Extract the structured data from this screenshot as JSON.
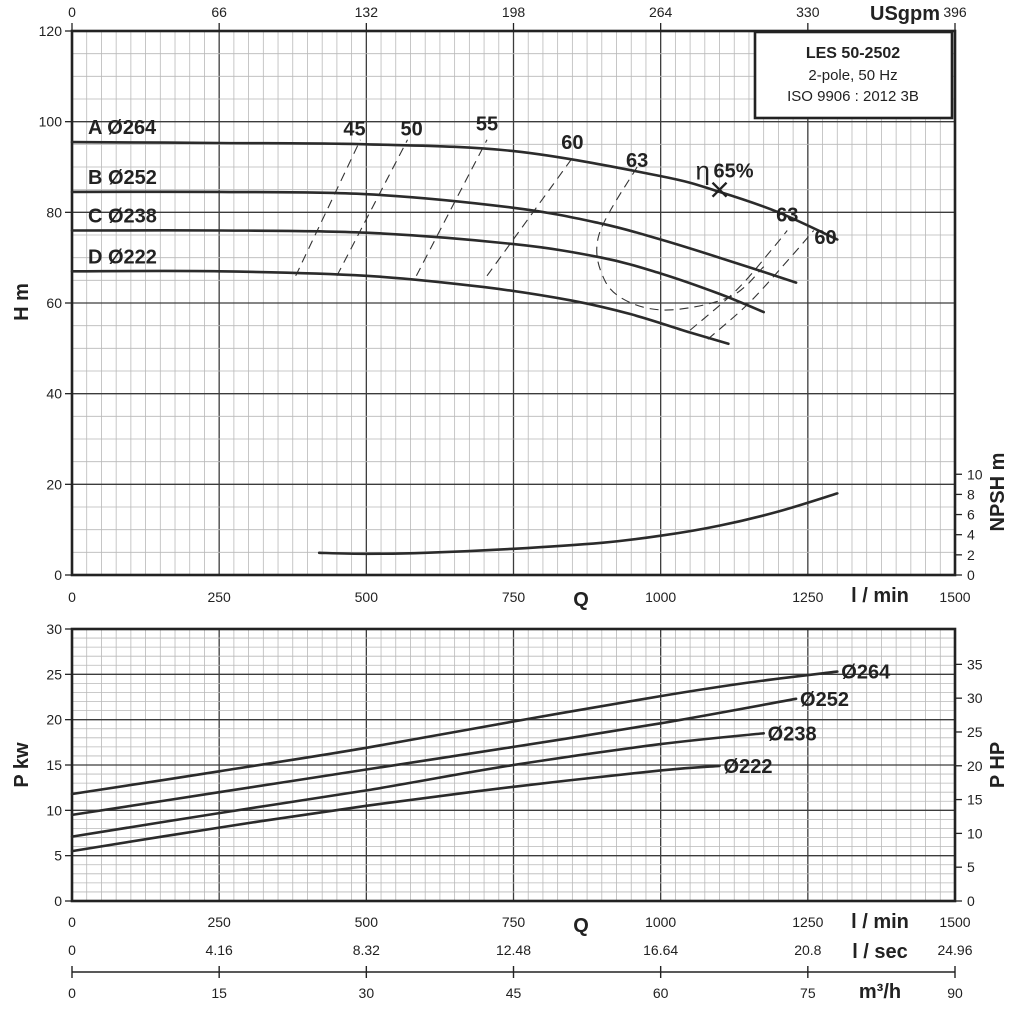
{
  "chart_data": [
    {
      "type": "line",
      "name": "head-chart",
      "model": "LES 50-2502",
      "model_details": [
        "2-pole, 50 Hz",
        "ISO 9906 : 2012 3B"
      ],
      "x_label": "Q",
      "x_unit": "l / min",
      "x_ticks": [
        0,
        250,
        500,
        750,
        1000,
        1250,
        1500
      ],
      "xlim": [
        0,
        1500
      ],
      "top_axis_unit": "USgpm",
      "top_axis_ticks": [
        "0",
        "66",
        "132",
        "198",
        "264",
        "330",
        "396"
      ],
      "y_label": "H m",
      "y_ticks": [
        0,
        20,
        40,
        60,
        80,
        100,
        120
      ],
      "ylim": [
        0,
        120
      ],
      "y2_label": "NPSH m",
      "y2_ticks": [
        0,
        2,
        4,
        6,
        8,
        10
      ],
      "grid": true,
      "series": [
        {
          "label": "A Ø264",
          "x": [
            0,
            250,
            500,
            750,
            1000,
            1100,
            1200,
            1300
          ],
          "y": [
            95.5,
            95.3,
            95,
            93.5,
            88,
            84.5,
            80,
            74
          ]
        },
        {
          "label": "B Ø252",
          "x": [
            0,
            250,
            500,
            750,
            900,
            1000,
            1100,
            1230
          ],
          "y": [
            84.5,
            84.5,
            84,
            81,
            77.5,
            74,
            70,
            64.5
          ]
        },
        {
          "label": "C Ø238",
          "x": [
            0,
            250,
            500,
            750,
            900,
            1000,
            1100,
            1175
          ],
          "y": [
            76,
            76,
            75.5,
            73,
            70,
            66.5,
            62,
            58
          ]
        },
        {
          "label": "D Ø222",
          "x": [
            0,
            250,
            500,
            700,
            850,
            950,
            1050,
            1115
          ],
          "y": [
            67,
            67,
            66,
            63.5,
            60.5,
            57.5,
            53.5,
            51
          ]
        }
      ],
      "npsh_series": {
        "x": [
          420,
          500,
          600,
          750,
          900,
          1000,
          1100,
          1200,
          1300
        ],
        "y": [
          2.2,
          2.1,
          2.2,
          2.6,
          3.2,
          3.9,
          4.9,
          6.3,
          8.1
        ]
      },
      "efficiency_labels": [
        "45",
        "50",
        "55",
        "60",
        "63",
        "65%",
        "63",
        "60"
      ],
      "efficiency_symbol": "η",
      "best_efficiency_point": {
        "x": 1100,
        "y": 85,
        "label": "65%"
      },
      "efficiency_contours": [
        {
          "label": "45",
          "x": [
            380,
            490
          ],
          "y": [
            66,
            96
          ]
        },
        {
          "label": "50",
          "x": [
            450,
            570
          ],
          "y": [
            66,
            96
          ]
        },
        {
          "label": "55",
          "x": [
            585,
            705
          ],
          "y": [
            66,
            96
          ]
        },
        {
          "label": "60",
          "x": [
            705,
            850
          ],
          "y": [
            66,
            92
          ]
        },
        {
          "label": "63",
          "x": [
            960,
            895,
            905,
            950,
            1020,
            1120,
            1175
          ],
          "y": [
            90,
            75,
            65,
            60,
            58.5,
            61.5,
            68
          ]
        },
        {
          "label": "60",
          "x": [
            1080,
            1150,
            1220,
            1260
          ],
          "y": [
            52,
            60,
            70,
            76
          ]
        },
        {
          "label": "63",
          "x": [
            1050,
            1130,
            1190,
            1215
          ],
          "y": [
            54,
            63,
            72,
            76
          ]
        }
      ]
    },
    {
      "type": "line",
      "name": "power-chart",
      "x_label": "Q",
      "x_ticks": [
        0,
        250,
        500,
        750,
        1000,
        1250,
        1500
      ],
      "xlim": [
        0,
        1500
      ],
      "y_label": "P kw",
      "y_ticks": [
        0,
        5,
        10,
        15,
        20,
        25,
        30
      ],
      "ylim": [
        0,
        30
      ],
      "y2_label": "P HP",
      "y2_ticks": [
        0,
        5,
        10,
        15,
        20,
        25,
        30,
        35
      ],
      "grid": true,
      "series": [
        {
          "label": "Ø264",
          "x": [
            0,
            250,
            500,
            750,
            1000,
            1150,
            1300
          ],
          "y": [
            11.8,
            14.3,
            16.9,
            19.8,
            22.6,
            24.1,
            25.3
          ]
        },
        {
          "label": "Ø252",
          "x": [
            0,
            250,
            500,
            750,
            1000,
            1230
          ],
          "y": [
            9.5,
            12,
            14.5,
            17,
            19.6,
            22.3
          ]
        },
        {
          "label": "Ø238",
          "x": [
            0,
            250,
            500,
            750,
            1000,
            1175
          ],
          "y": [
            7.1,
            9.7,
            12.2,
            15,
            17.3,
            18.5
          ]
        },
        {
          "label": "Ø222",
          "x": [
            0,
            250,
            500,
            750,
            1000,
            1100
          ],
          "y": [
            5.5,
            8.1,
            10.5,
            12.6,
            14.4,
            14.9
          ]
        }
      ]
    }
  ],
  "unit_scales": [
    {
      "unit": "l / min",
      "ticks": [
        "0",
        "250",
        "500",
        "750",
        "1000",
        "1250",
        "1500"
      ]
    },
    {
      "unit": "l / sec",
      "ticks": [
        "0",
        "4.16",
        "8.32",
        "12.48",
        "16.64",
        "20.8",
        "24.96"
      ]
    },
    {
      "unit": "m³/h",
      "ticks": [
        "0",
        "15",
        "30",
        "45",
        "60",
        "75",
        "90"
      ]
    }
  ]
}
